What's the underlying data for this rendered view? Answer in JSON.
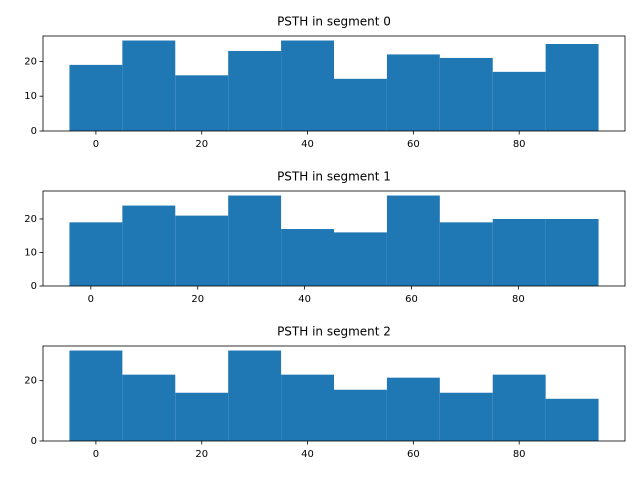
{
  "chart_data": [
    {
      "type": "histogram",
      "title": "PSTH in segment 0",
      "color": "#1f77b4",
      "bins": [
        -5,
        5,
        15,
        25,
        35,
        45,
        55,
        65,
        75,
        85,
        95
      ],
      "values": [
        19,
        26,
        16,
        23,
        26,
        15,
        22,
        21,
        17,
        25
      ],
      "xlim": [
        -10,
        100
      ],
      "xticks": [
        0,
        20,
        40,
        60,
        80
      ],
      "ylim": [
        0,
        27.3
      ],
      "yticks": [
        0,
        10,
        20
      ]
    },
    {
      "type": "histogram",
      "title": "PSTH in segment 1",
      "color": "#1f77b4",
      "bins": [
        -4,
        5.9,
        15.8,
        25.7,
        35.6,
        45.5,
        55.4,
        65.3,
        75.2,
        85.1,
        95
      ],
      "values": [
        19,
        24,
        21,
        27,
        17,
        16,
        27,
        19,
        20,
        20
      ],
      "xlim": [
        -8.95,
        99.95
      ],
      "xticks": [
        0,
        20,
        40,
        60,
        80
      ],
      "ylim": [
        0,
        28.35
      ],
      "yticks": [
        0,
        10,
        20
      ]
    },
    {
      "type": "histogram",
      "title": "PSTH in segment 2",
      "color": "#1f77b4",
      "bins": [
        -5,
        5,
        15,
        25,
        35,
        45,
        55,
        65,
        75,
        85,
        95
      ],
      "values": [
        30,
        22,
        16,
        30,
        22,
        17,
        21,
        16,
        22,
        14
      ],
      "xlim": [
        -10,
        100
      ],
      "xticks": [
        0,
        20,
        40,
        60,
        80
      ],
      "ylim": [
        0,
        31.5
      ],
      "yticks": [
        0,
        20
      ]
    }
  ]
}
